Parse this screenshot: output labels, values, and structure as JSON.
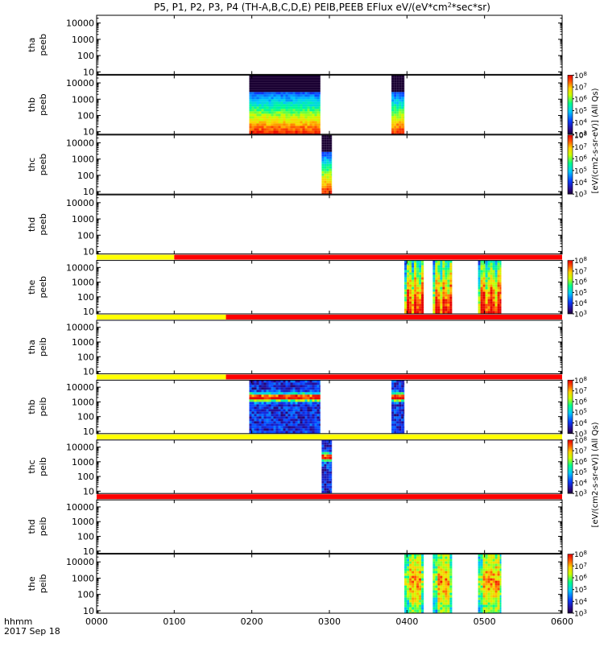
{
  "chart_data": {
    "type": "heatmap",
    "title": "P5, P1, P2, P3, P4 (TH-A,B,C,D,E) PEIB,PEEB EFlux eV/(eV*cm²*sec*sr)",
    "title_parts": {
      "prefix": "P5, P1, P2, P3, P4 (TH-A,B,C,D,E) PEIB,PEEB EFlux eV/(eV*cm",
      "sup": "2",
      "suffix": "*sec*sr)"
    },
    "x_label_line1": "hhmm",
    "x_label_line2": "2017 Sep 18",
    "x_range": [
      "0000",
      "0600"
    ],
    "x_ticks": [
      "0000",
      "0100",
      "0200",
      "0300",
      "0400",
      "0500",
      "0600"
    ],
    "y_scale": "log",
    "y_range": [
      7,
      30000
    ],
    "y_ticks": [
      "10",
      "100",
      "1000",
      "10000"
    ],
    "colorbar_scale": "log",
    "colorbar_range": [
      1000,
      100000000
    ],
    "colorbar_ticks": [
      {
        "base": "10",
        "exp": "8"
      },
      {
        "base": "10",
        "exp": "7"
      },
      {
        "base": "10",
        "exp": "6"
      },
      {
        "base": "10",
        "exp": "5"
      },
      {
        "base": "10",
        "exp": "4"
      },
      {
        "base": "10",
        "exp": "3"
      }
    ],
    "colorbar_unit_electron": "[eV/(cm2-s-sr-eV)] (All Qs)",
    "colorbar_unit_ion": "[eV/(cm2-s-sr-eV)] (All Qs)",
    "flag_colors": {
      "yellow": "#ffff00",
      "red": "#ff0000"
    },
    "panels": [
      {
        "label1": "tha",
        "label2": "peeb",
        "colorbar": false,
        "flag": [],
        "blocks": []
      },
      {
        "label1": "thb",
        "label2": "peeb",
        "colorbar": true,
        "flag": [],
        "blocks": [
          {
            "start": "0158",
            "end": "0253",
            "pattern": "electron"
          },
          {
            "start": "0348",
            "end": "0358",
            "pattern": "electron"
          }
        ]
      },
      {
        "label1": "thc",
        "label2": "peeb",
        "colorbar": true,
        "flag": [],
        "blocks": [
          {
            "start": "0254",
            "end": "0302",
            "pattern": "electron"
          }
        ]
      },
      {
        "label1": "thd",
        "label2": "peeb",
        "colorbar": false,
        "flag": [],
        "blocks": []
      },
      {
        "label1": "the",
        "label2": "peeb",
        "colorbar": true,
        "flag": [
          {
            "start": "0000",
            "end": "0100",
            "color": "yellow"
          },
          {
            "start": "0100",
            "end": "0600",
            "color": "red"
          }
        ],
        "blocks": [
          {
            "start": "0358",
            "end": "0413",
            "pattern": "mixed"
          },
          {
            "start": "0420",
            "end": "0435",
            "pattern": "mixed"
          },
          {
            "start": "0455",
            "end": "0513",
            "pattern": "mixed"
          }
        ]
      },
      {
        "label1": "tha",
        "label2": "peib",
        "colorbar": false,
        "flag": [
          {
            "start": "0000",
            "end": "0140",
            "color": "yellow"
          },
          {
            "start": "0140",
            "end": "0600",
            "color": "red"
          }
        ],
        "blocks": []
      },
      {
        "label1": "thb",
        "label2": "peib",
        "colorbar": true,
        "flag": [
          {
            "start": "0000",
            "end": "0140",
            "color": "yellow"
          },
          {
            "start": "0140",
            "end": "0600",
            "color": "red"
          }
        ],
        "blocks": [
          {
            "start": "0158",
            "end": "0253",
            "pattern": "ion"
          },
          {
            "start": "0348",
            "end": "0358",
            "pattern": "ion"
          }
        ]
      },
      {
        "label1": "thc",
        "label2": "peib",
        "colorbar": true,
        "flag": [
          {
            "start": "0000",
            "end": "0600",
            "color": "yellow"
          }
        ],
        "blocks": [
          {
            "start": "0254",
            "end": "0302",
            "pattern": "ion"
          }
        ]
      },
      {
        "label1": "thd",
        "label2": "peib",
        "colorbar": false,
        "flag": [
          {
            "start": "0000",
            "end": "0600",
            "color": "red"
          }
        ],
        "blocks": []
      },
      {
        "label1": "the",
        "label2": "peib",
        "colorbar": true,
        "flag": [],
        "blocks": [
          {
            "start": "0358",
            "end": "0413",
            "pattern": "hot"
          },
          {
            "start": "0420",
            "end": "0435",
            "pattern": "hot"
          },
          {
            "start": "0455",
            "end": "0513",
            "pattern": "hot"
          }
        ]
      }
    ]
  }
}
